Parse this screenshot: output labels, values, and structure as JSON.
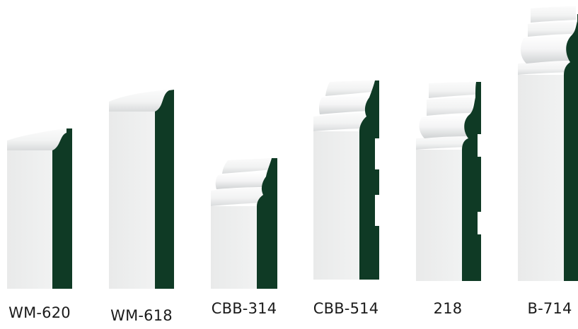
{
  "colors": {
    "profile_section": "#0f3a25",
    "face_base": "#eeefef",
    "face_highlight": "#ffffff",
    "face_shadow": "#d7d9da"
  },
  "moldings": [
    {
      "id": "wm620",
      "label": "WM-620"
    },
    {
      "id": "wm618",
      "label": "WM-618"
    },
    {
      "id": "cbb314",
      "label": "CBB-314"
    },
    {
      "id": "cbb514",
      "label": "CBB-514"
    },
    {
      "id": "218",
      "label": "218"
    },
    {
      "id": "b714",
      "label": "B-714"
    }
  ]
}
